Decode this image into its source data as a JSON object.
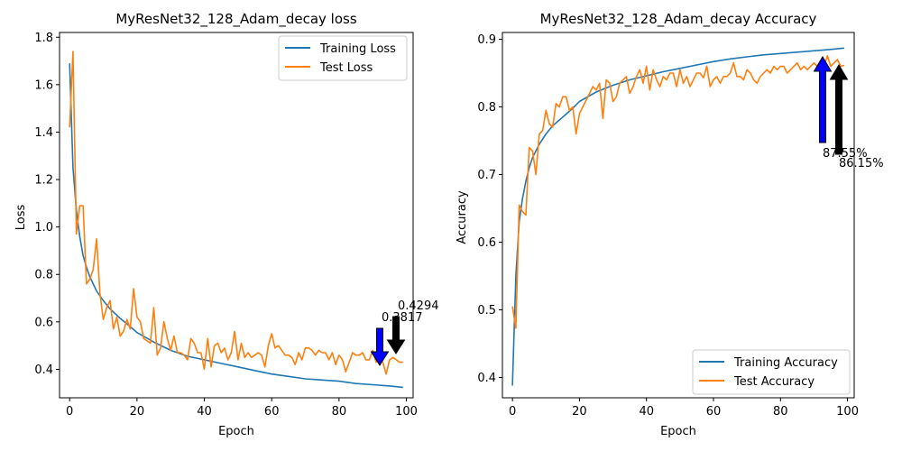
{
  "chart_data": [
    {
      "type": "line",
      "title": "MyResNet32_128_Adam_decay loss",
      "xlabel": "Epoch",
      "ylabel": "Loss",
      "xlim": [
        -3,
        102
      ],
      "ylim": [
        0.28,
        1.82
      ],
      "xticks": [
        0,
        20,
        40,
        60,
        80,
        100
      ],
      "yticks": [
        0.4,
        0.6,
        0.8,
        1.0,
        1.2,
        1.4,
        1.6,
        1.8
      ],
      "xtick_labels": [
        "0",
        "20",
        "40",
        "60",
        "80",
        "100"
      ],
      "ytick_labels": [
        "0.4",
        "0.6",
        "0.8",
        "1.0",
        "1.2",
        "1.4",
        "1.6",
        "1.8"
      ],
      "grid": false,
      "legend_position": "top-right",
      "series": [
        {
          "name": "Training Loss",
          "color": "#1f77b4",
          "x": [
            0,
            1,
            2,
            3,
            4,
            5,
            6,
            8,
            10,
            12,
            15,
            18,
            20,
            25,
            30,
            35,
            40,
            45,
            50,
            55,
            60,
            65,
            70,
            75,
            80,
            85,
            90,
            95,
            99
          ],
          "y": [
            1.69,
            1.25,
            1.07,
            0.96,
            0.88,
            0.83,
            0.79,
            0.73,
            0.69,
            0.655,
            0.615,
            0.58,
            0.555,
            0.515,
            0.48,
            0.455,
            0.44,
            0.425,
            0.41,
            0.395,
            0.38,
            0.37,
            0.36,
            0.355,
            0.35,
            0.34,
            0.335,
            0.33,
            0.324
          ]
        },
        {
          "name": "Test Loss",
          "color": "#ff7f0e",
          "x": [
            0,
            1,
            2,
            3,
            4,
            5,
            6,
            7,
            8,
            9,
            10,
            11,
            12,
            13,
            14,
            15,
            16,
            17,
            18,
            19,
            20,
            21,
            22,
            23,
            24,
            25,
            26,
            27,
            28,
            29,
            30,
            31,
            32,
            33,
            34,
            35,
            36,
            37,
            38,
            39,
            40,
            41,
            42,
            43,
            44,
            45,
            46,
            47,
            48,
            49,
            50,
            51,
            52,
            53,
            54,
            55,
            56,
            57,
            58,
            59,
            60,
            61,
            62,
            63,
            64,
            65,
            66,
            67,
            68,
            69,
            70,
            71,
            72,
            73,
            74,
            75,
            76,
            77,
            78,
            79,
            80,
            81,
            82,
            83,
            84,
            85,
            86,
            87,
            88,
            89,
            90,
            91,
            92,
            93,
            94,
            95,
            96,
            97,
            98,
            99
          ],
          "y": [
            1.42,
            1.74,
            0.97,
            1.09,
            1.09,
            0.76,
            0.78,
            0.82,
            0.95,
            0.72,
            0.61,
            0.66,
            0.69,
            0.57,
            0.62,
            0.54,
            0.56,
            0.61,
            0.57,
            0.74,
            0.62,
            0.6,
            0.53,
            0.52,
            0.51,
            0.66,
            0.46,
            0.49,
            0.6,
            0.53,
            0.48,
            0.54,
            0.47,
            0.47,
            0.46,
            0.44,
            0.53,
            0.51,
            0.47,
            0.47,
            0.4,
            0.53,
            0.41,
            0.5,
            0.51,
            0.47,
            0.49,
            0.44,
            0.47,
            0.56,
            0.44,
            0.51,
            0.45,
            0.47,
            0.45,
            0.46,
            0.47,
            0.46,
            0.41,
            0.5,
            0.55,
            0.49,
            0.5,
            0.48,
            0.46,
            0.46,
            0.45,
            0.42,
            0.47,
            0.44,
            0.49,
            0.49,
            0.48,
            0.46,
            0.48,
            0.47,
            0.47,
            0.44,
            0.47,
            0.42,
            0.46,
            0.44,
            0.39,
            0.43,
            0.47,
            0.46,
            0.46,
            0.47,
            0.44,
            0.44,
            0.48,
            0.43,
            0.44,
            0.43,
            0.38,
            0.44,
            0.45,
            0.44,
            0.43,
            0.43
          ]
        }
      ],
      "annotations": [
        {
          "text": "0.3817",
          "x": 94,
          "value": 0.3817,
          "style": "blue-arrow-down"
        },
        {
          "text": "0.4294",
          "x": 99,
          "value": 0.4294,
          "style": "black-arrow-down"
        }
      ]
    },
    {
      "type": "line",
      "title": "MyResNet32_128_Adam_decay Accuracy",
      "xlabel": "Epoch",
      "ylabel": "Accuracy",
      "xlim": [
        -3,
        102
      ],
      "ylim": [
        0.37,
        0.91
      ],
      "xticks": [
        0,
        20,
        40,
        60,
        80,
        100
      ],
      "yticks": [
        0.4,
        0.5,
        0.6,
        0.7,
        0.8,
        0.9
      ],
      "xtick_labels": [
        "0",
        "20",
        "40",
        "60",
        "80",
        "100"
      ],
      "ytick_labels": [
        "0.4",
        "0.5",
        "0.6",
        "0.7",
        "0.8",
        "0.9"
      ],
      "grid": false,
      "legend_position": "bottom-right",
      "series": [
        {
          "name": "Training Accuracy",
          "color": "#1f77b4",
          "x": [
            0,
            1,
            2,
            3,
            4,
            5,
            6,
            8,
            10,
            12,
            15,
            18,
            20,
            25,
            30,
            35,
            40,
            45,
            50,
            55,
            60,
            65,
            70,
            75,
            80,
            85,
            90,
            95,
            99
          ],
          "y": [
            0.388,
            0.55,
            0.63,
            0.665,
            0.69,
            0.71,
            0.725,
            0.745,
            0.76,
            0.772,
            0.785,
            0.798,
            0.808,
            0.822,
            0.832,
            0.84,
            0.846,
            0.852,
            0.857,
            0.862,
            0.867,
            0.871,
            0.874,
            0.877,
            0.879,
            0.881,
            0.883,
            0.885,
            0.887
          ]
        },
        {
          "name": "Test Accuracy",
          "color": "#ff7f0e",
          "x": [
            0,
            1,
            2,
            3,
            4,
            5,
            6,
            7,
            8,
            9,
            10,
            11,
            12,
            13,
            14,
            15,
            16,
            17,
            18,
            19,
            20,
            21,
            22,
            23,
            24,
            25,
            26,
            27,
            28,
            29,
            30,
            31,
            32,
            33,
            34,
            35,
            36,
            37,
            38,
            39,
            40,
            41,
            42,
            43,
            44,
            45,
            46,
            47,
            48,
            49,
            50,
            51,
            52,
            53,
            54,
            55,
            56,
            57,
            58,
            59,
            60,
            61,
            62,
            63,
            64,
            65,
            66,
            67,
            68,
            69,
            70,
            71,
            72,
            73,
            74,
            75,
            76,
            77,
            78,
            79,
            80,
            81,
            82,
            83,
            84,
            85,
            86,
            87,
            88,
            89,
            90,
            91,
            92,
            93,
            94,
            95,
            96,
            97,
            98,
            99
          ],
          "y": [
            0.505,
            0.473,
            0.655,
            0.645,
            0.64,
            0.74,
            0.735,
            0.7,
            0.76,
            0.765,
            0.795,
            0.775,
            0.77,
            0.805,
            0.8,
            0.815,
            0.815,
            0.795,
            0.8,
            0.76,
            0.79,
            0.8,
            0.81,
            0.82,
            0.83,
            0.825,
            0.835,
            0.783,
            0.84,
            0.835,
            0.808,
            0.815,
            0.835,
            0.84,
            0.845,
            0.82,
            0.83,
            0.845,
            0.855,
            0.835,
            0.86,
            0.825,
            0.855,
            0.84,
            0.83,
            0.845,
            0.84,
            0.85,
            0.85,
            0.83,
            0.855,
            0.835,
            0.845,
            0.83,
            0.84,
            0.85,
            0.85,
            0.843,
            0.86,
            0.83,
            0.84,
            0.845,
            0.835,
            0.845,
            0.845,
            0.85,
            0.865,
            0.845,
            0.845,
            0.84,
            0.855,
            0.85,
            0.84,
            0.835,
            0.845,
            0.85,
            0.855,
            0.85,
            0.86,
            0.855,
            0.86,
            0.86,
            0.85,
            0.855,
            0.86,
            0.865,
            0.855,
            0.86,
            0.855,
            0.86,
            0.865,
            0.86,
            0.855,
            0.86,
            0.8755,
            0.86,
            0.865,
            0.87,
            0.86,
            0.8615
          ]
        }
      ],
      "annotations": [
        {
          "text": "87.55%",
          "x": 94,
          "value": 0.8755,
          "style": "blue-arrow-up"
        },
        {
          "text": "86.15%",
          "x": 99,
          "value": 0.8615,
          "style": "black-arrow-up"
        }
      ]
    }
  ]
}
